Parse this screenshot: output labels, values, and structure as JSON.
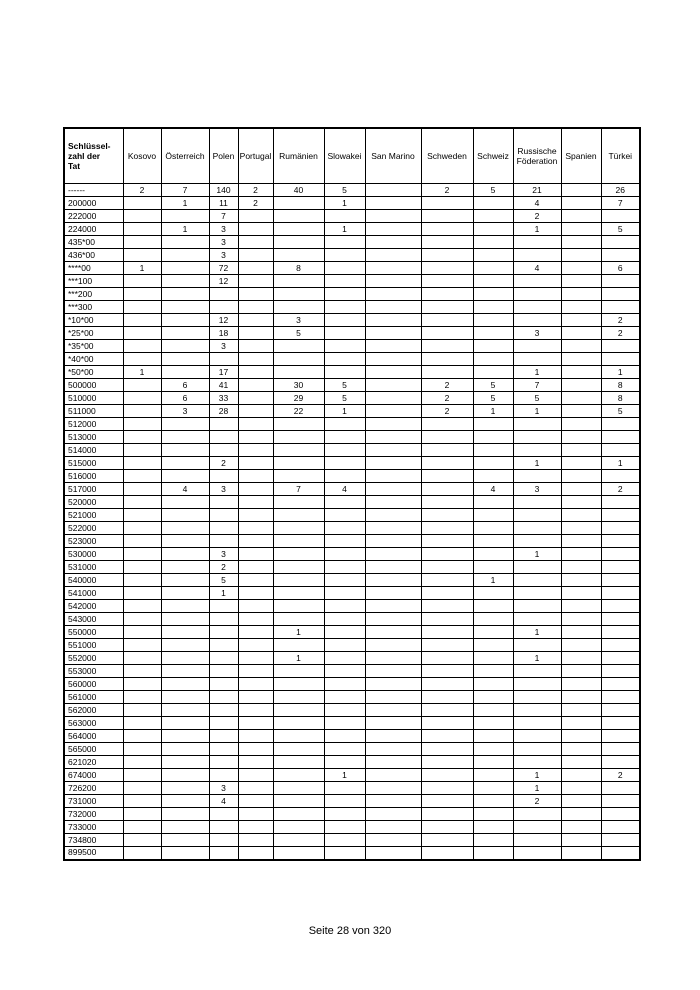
{
  "page": {
    "footer": "Seite 28 von 320"
  },
  "table": {
    "corner_header": "Schlüssel-\nzahl der\nTat",
    "columns": [
      "Kosovo",
      "Österreich",
      "Polen",
      "Portugal",
      "Rumänien",
      "Slowakei",
      "San Marino",
      "Schweden",
      "Schweiz",
      "Russische Föderation",
      "Spanien",
      "Türkei"
    ],
    "rows": [
      {
        "label": "------",
        "values": [
          "2",
          "7",
          "140",
          "2",
          "40",
          "5",
          "",
          "2",
          "5",
          "21",
          "",
          "26"
        ]
      },
      {
        "label": "200000",
        "values": [
          "",
          "1",
          "11",
          "2",
          "",
          "1",
          "",
          "",
          "",
          "4",
          "",
          "7"
        ]
      },
      {
        "label": "222000",
        "values": [
          "",
          "",
          "7",
          "",
          "",
          "",
          "",
          "",
          "",
          "2",
          "",
          ""
        ]
      },
      {
        "label": "224000",
        "values": [
          "",
          "1",
          "3",
          "",
          "",
          "1",
          "",
          "",
          "",
          "1",
          "",
          "5"
        ]
      },
      {
        "label": "435*00",
        "values": [
          "",
          "",
          "3",
          "",
          "",
          "",
          "",
          "",
          "",
          "",
          "",
          ""
        ]
      },
      {
        "label": "436*00",
        "values": [
          "",
          "",
          "3",
          "",
          "",
          "",
          "",
          "",
          "",
          "",
          "",
          ""
        ]
      },
      {
        "label": "****00",
        "values": [
          "1",
          "",
          "72",
          "",
          "8",
          "",
          "",
          "",
          "",
          "4",
          "",
          "6"
        ]
      },
      {
        "label": "***100",
        "values": [
          "",
          "",
          "12",
          "",
          "",
          "",
          "",
          "",
          "",
          "",
          "",
          ""
        ]
      },
      {
        "label": "***200",
        "values": [
          "",
          "",
          "",
          "",
          "",
          "",
          "",
          "",
          "",
          "",
          "",
          ""
        ]
      },
      {
        "label": "***300",
        "values": [
          "",
          "",
          "",
          "",
          "",
          "",
          "",
          "",
          "",
          "",
          "",
          ""
        ]
      },
      {
        "label": "*10*00",
        "values": [
          "",
          "",
          "12",
          "",
          "3",
          "",
          "",
          "",
          "",
          "",
          "",
          "2"
        ]
      },
      {
        "label": "*25*00",
        "values": [
          "",
          "",
          "18",
          "",
          "5",
          "",
          "",
          "",
          "",
          "3",
          "",
          "2"
        ]
      },
      {
        "label": "*35*00",
        "values": [
          "",
          "",
          "3",
          "",
          "",
          "",
          "",
          "",
          "",
          "",
          "",
          ""
        ]
      },
      {
        "label": "*40*00",
        "values": [
          "",
          "",
          "",
          "",
          "",
          "",
          "",
          "",
          "",
          "",
          "",
          ""
        ]
      },
      {
        "label": "*50*00",
        "values": [
          "1",
          "",
          "17",
          "",
          "",
          "",
          "",
          "",
          "",
          "1",
          "",
          "1"
        ]
      },
      {
        "label": "500000",
        "values": [
          "",
          "6",
          "41",
          "",
          "30",
          "5",
          "",
          "2",
          "5",
          "7",
          "",
          "8"
        ]
      },
      {
        "label": "510000",
        "values": [
          "",
          "6",
          "33",
          "",
          "29",
          "5",
          "",
          "2",
          "5",
          "5",
          "",
          "8"
        ]
      },
      {
        "label": "511000",
        "values": [
          "",
          "3",
          "28",
          "",
          "22",
          "1",
          "",
          "2",
          "1",
          "1",
          "",
          "5"
        ]
      },
      {
        "label": "512000",
        "values": [
          "",
          "",
          "",
          "",
          "",
          "",
          "",
          "",
          "",
          "",
          "",
          ""
        ]
      },
      {
        "label": "513000",
        "values": [
          "",
          "",
          "",
          "",
          "",
          "",
          "",
          "",
          "",
          "",
          "",
          ""
        ]
      },
      {
        "label": "514000",
        "values": [
          "",
          "",
          "",
          "",
          "",
          "",
          "",
          "",
          "",
          "",
          "",
          ""
        ]
      },
      {
        "label": "515000",
        "values": [
          "",
          "",
          "2",
          "",
          "",
          "",
          "",
          "",
          "",
          "1",
          "",
          "1"
        ]
      },
      {
        "label": "516000",
        "values": [
          "",
          "",
          "",
          "",
          "",
          "",
          "",
          "",
          "",
          "",
          "",
          ""
        ]
      },
      {
        "label": "517000",
        "values": [
          "",
          "4",
          "3",
          "",
          "7",
          "4",
          "",
          "",
          "4",
          "3",
          "",
          "2"
        ]
      },
      {
        "label": "520000",
        "values": [
          "",
          "",
          "",
          "",
          "",
          "",
          "",
          "",
          "",
          "",
          "",
          ""
        ]
      },
      {
        "label": "521000",
        "values": [
          "",
          "",
          "",
          "",
          "",
          "",
          "",
          "",
          "",
          "",
          "",
          ""
        ]
      },
      {
        "label": "522000",
        "values": [
          "",
          "",
          "",
          "",
          "",
          "",
          "",
          "",
          "",
          "",
          "",
          ""
        ]
      },
      {
        "label": "523000",
        "values": [
          "",
          "",
          "",
          "",
          "",
          "",
          "",
          "",
          "",
          "",
          "",
          ""
        ]
      },
      {
        "label": "530000",
        "values": [
          "",
          "",
          "3",
          "",
          "",
          "",
          "",
          "",
          "",
          "1",
          "",
          ""
        ]
      },
      {
        "label": "531000",
        "values": [
          "",
          "",
          "2",
          "",
          "",
          "",
          "",
          "",
          "",
          "",
          "",
          ""
        ]
      },
      {
        "label": "540000",
        "values": [
          "",
          "",
          "5",
          "",
          "",
          "",
          "",
          "",
          "1",
          "",
          "",
          ""
        ]
      },
      {
        "label": "541000",
        "values": [
          "",
          "",
          "1",
          "",
          "",
          "",
          "",
          "",
          "",
          "",
          "",
          ""
        ]
      },
      {
        "label": "542000",
        "values": [
          "",
          "",
          "",
          "",
          "",
          "",
          "",
          "",
          "",
          "",
          "",
          ""
        ]
      },
      {
        "label": "543000",
        "values": [
          "",
          "",
          "",
          "",
          "",
          "",
          "",
          "",
          "",
          "",
          "",
          ""
        ]
      },
      {
        "label": "550000",
        "values": [
          "",
          "",
          "",
          "",
          "1",
          "",
          "",
          "",
          "",
          "1",
          "",
          ""
        ]
      },
      {
        "label": "551000",
        "values": [
          "",
          "",
          "",
          "",
          "",
          "",
          "",
          "",
          "",
          "",
          "",
          ""
        ]
      },
      {
        "label": "552000",
        "values": [
          "",
          "",
          "",
          "",
          "1",
          "",
          "",
          "",
          "",
          "1",
          "",
          ""
        ]
      },
      {
        "label": "553000",
        "values": [
          "",
          "",
          "",
          "",
          "",
          "",
          "",
          "",
          "",
          "",
          "",
          ""
        ]
      },
      {
        "label": "560000",
        "values": [
          "",
          "",
          "",
          "",
          "",
          "",
          "",
          "",
          "",
          "",
          "",
          ""
        ]
      },
      {
        "label": "561000",
        "values": [
          "",
          "",
          "",
          "",
          "",
          "",
          "",
          "",
          "",
          "",
          "",
          ""
        ]
      },
      {
        "label": "562000",
        "values": [
          "",
          "",
          "",
          "",
          "",
          "",
          "",
          "",
          "",
          "",
          "",
          ""
        ]
      },
      {
        "label": "563000",
        "values": [
          "",
          "",
          "",
          "",
          "",
          "",
          "",
          "",
          "",
          "",
          "",
          ""
        ]
      },
      {
        "label": "564000",
        "values": [
          "",
          "",
          "",
          "",
          "",
          "",
          "",
          "",
          "",
          "",
          "",
          ""
        ]
      },
      {
        "label": "565000",
        "values": [
          "",
          "",
          "",
          "",
          "",
          "",
          "",
          "",
          "",
          "",
          "",
          ""
        ]
      },
      {
        "label": "621020",
        "values": [
          "",
          "",
          "",
          "",
          "",
          "",
          "",
          "",
          "",
          "",
          "",
          ""
        ]
      },
      {
        "label": "674000",
        "values": [
          "",
          "",
          "",
          "",
          "",
          "1",
          "",
          "",
          "",
          "1",
          "",
          "2"
        ]
      },
      {
        "label": "726200",
        "values": [
          "",
          "",
          "3",
          "",
          "",
          "",
          "",
          "",
          "",
          "1",
          "",
          ""
        ]
      },
      {
        "label": "731000",
        "values": [
          "",
          "",
          "4",
          "",
          "",
          "",
          "",
          "",
          "",
          "2",
          "",
          ""
        ]
      },
      {
        "label": "732000",
        "values": [
          "",
          "",
          "",
          "",
          "",
          "",
          "",
          "",
          "",
          "",
          "",
          ""
        ]
      },
      {
        "label": "733000",
        "values": [
          "",
          "",
          "",
          "",
          "",
          "",
          "",
          "",
          "",
          "",
          "",
          ""
        ]
      },
      {
        "label": "734800",
        "values": [
          "",
          "",
          "",
          "",
          "",
          "",
          "",
          "",
          "",
          "",
          "",
          ""
        ]
      },
      {
        "label": "899500",
        "values": [
          "",
          "",
          "",
          "",
          "",
          "",
          "",
          "",
          "",
          "",
          "",
          ""
        ]
      }
    ]
  }
}
